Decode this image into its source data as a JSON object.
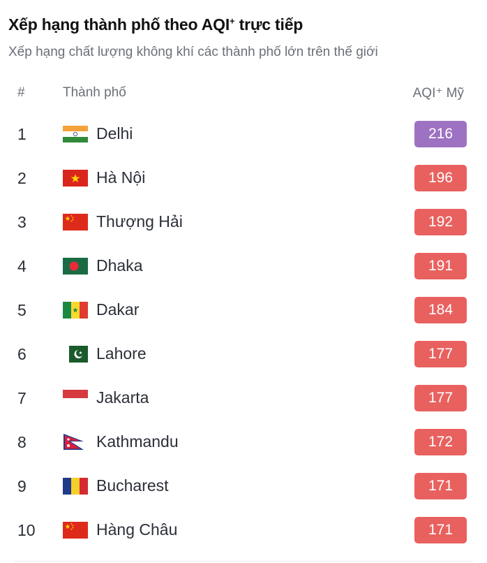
{
  "title_main": "Xếp hạng thành phố theo AQI",
  "title_sup": "+",
  "title_tail": " trực tiếp",
  "subtitle": "Xếp hạng chất lượng không khí các thành phố lớn trên thế giới",
  "columns": {
    "rank": "#",
    "city": "Thành phố",
    "aqi": "AQI⁺ Mỹ"
  },
  "colors": {
    "very_unhealthy": "#9d72c2",
    "unhealthy": "#e8615f"
  },
  "rows": [
    {
      "rank": "1",
      "city": "Delhi",
      "flag": "india-flag-icon",
      "aqi": "216",
      "color": "#9d72c2"
    },
    {
      "rank": "2",
      "city": "Hà Nội",
      "flag": "vietnam-flag-icon",
      "aqi": "196",
      "color": "#e8615f"
    },
    {
      "rank": "3",
      "city": "Thượng Hải",
      "flag": "china-flag-icon",
      "aqi": "192",
      "color": "#e8615f"
    },
    {
      "rank": "4",
      "city": "Dhaka",
      "flag": "bangladesh-flag-icon",
      "aqi": "191",
      "color": "#e8615f"
    },
    {
      "rank": "5",
      "city": "Dakar",
      "flag": "senegal-flag-icon",
      "aqi": "184",
      "color": "#e8615f"
    },
    {
      "rank": "6",
      "city": "Lahore",
      "flag": "pakistan-flag-icon",
      "aqi": "177",
      "color": "#e8615f"
    },
    {
      "rank": "7",
      "city": "Jakarta",
      "flag": "indonesia-flag-icon",
      "aqi": "177",
      "color": "#e8615f"
    },
    {
      "rank": "8",
      "city": "Kathmandu",
      "flag": "nepal-flag-icon",
      "aqi": "172",
      "color": "#e8615f"
    },
    {
      "rank": "9",
      "city": "Bucharest",
      "flag": "romania-flag-icon",
      "aqi": "171",
      "color": "#e8615f"
    },
    {
      "rank": "10",
      "city": "Hàng Châu",
      "flag": "china-flag-icon",
      "aqi": "171",
      "color": "#e8615f"
    }
  ]
}
